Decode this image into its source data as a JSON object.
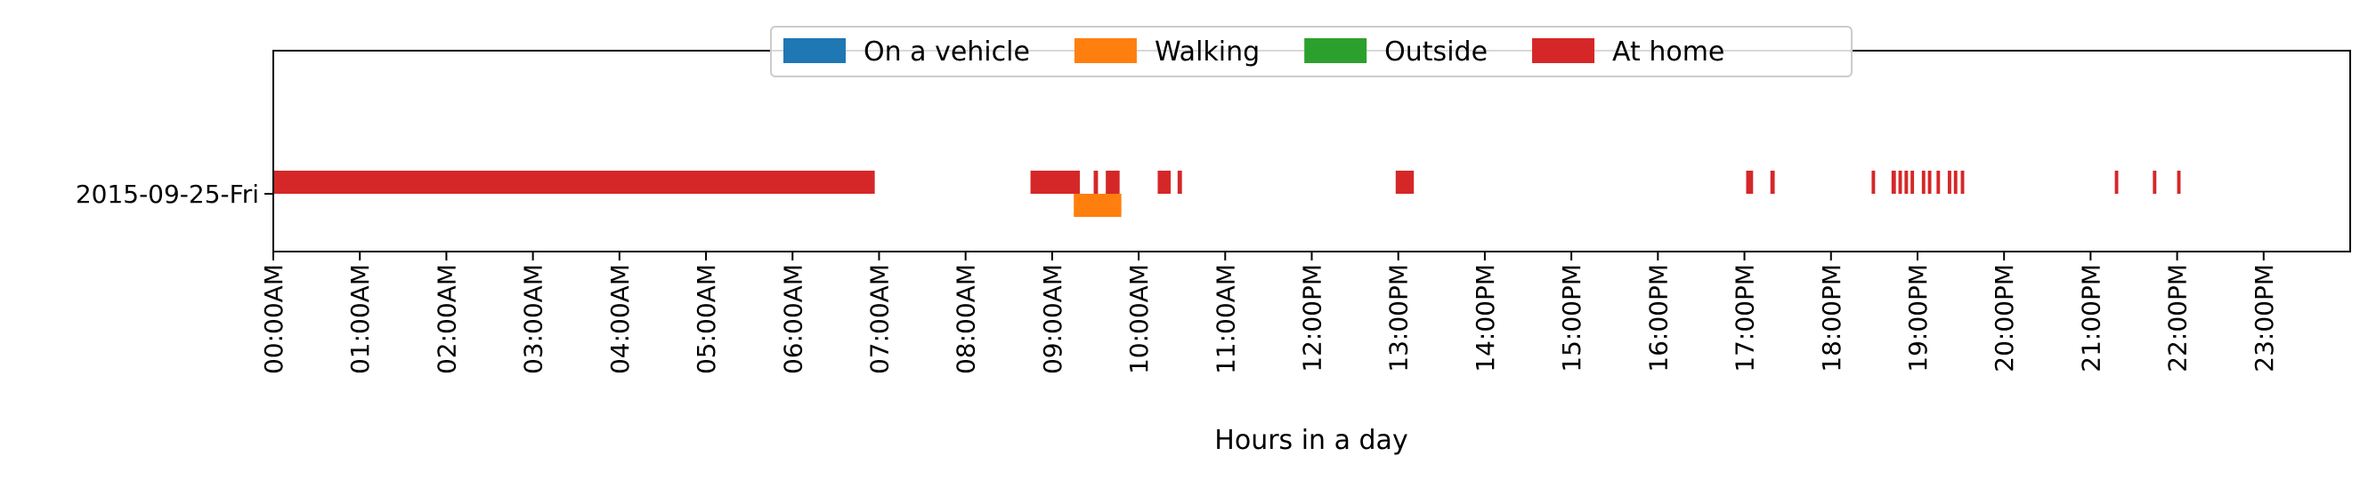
{
  "chart_data": {
    "type": "timeline",
    "xlabel": "Hours in a day",
    "xlim": [
      0,
      24
    ],
    "xticks": [
      {
        "value": 0,
        "label": "00:00AM"
      },
      {
        "value": 1,
        "label": "01:00AM"
      },
      {
        "value": 2,
        "label": "02:00AM"
      },
      {
        "value": 3,
        "label": "03:00AM"
      },
      {
        "value": 4,
        "label": "04:00AM"
      },
      {
        "value": 5,
        "label": "05:00AM"
      },
      {
        "value": 6,
        "label": "06:00AM"
      },
      {
        "value": 7,
        "label": "07:00AM"
      },
      {
        "value": 8,
        "label": "08:00AM"
      },
      {
        "value": 9,
        "label": "09:00AM"
      },
      {
        "value": 10,
        "label": "10:00AM"
      },
      {
        "value": 11,
        "label": "11:00AM"
      },
      {
        "value": 12,
        "label": "12:00PM"
      },
      {
        "value": 13,
        "label": "13:00PM"
      },
      {
        "value": 14,
        "label": "14:00PM"
      },
      {
        "value": 15,
        "label": "15:00PM"
      },
      {
        "value": 16,
        "label": "16:00PM"
      },
      {
        "value": 17,
        "label": "17:00PM"
      },
      {
        "value": 18,
        "label": "18:00PM"
      },
      {
        "value": 19,
        "label": "19:00PM"
      },
      {
        "value": 20,
        "label": "20:00PM"
      },
      {
        "value": 21,
        "label": "21:00PM"
      },
      {
        "value": 22,
        "label": "22:00PM"
      },
      {
        "value": 23,
        "label": "23:00PM"
      }
    ],
    "rows": [
      "2015-09-25-Fri"
    ],
    "legend_position": "top-center",
    "grid": false,
    "series": [
      {
        "name": "On a vehicle",
        "color": "#1f77b4",
        "intervals": []
      },
      {
        "name": "Walking",
        "color": "#ff7f0e",
        "intervals": [
          [
            9.25,
            9.8
          ]
        ]
      },
      {
        "name": "Outside",
        "color": "#2ca02c",
        "intervals": []
      },
      {
        "name": "At home",
        "color": "#d62728",
        "intervals": [
          [
            0.0,
            6.95
          ],
          [
            8.75,
            9.32
          ],
          [
            9.48,
            9.53
          ],
          [
            9.62,
            9.78
          ],
          [
            10.22,
            10.37
          ],
          [
            10.45,
            10.5
          ],
          [
            12.97,
            13.18
          ],
          [
            17.02,
            17.1
          ],
          [
            17.3,
            17.35
          ],
          [
            18.47,
            18.51
          ],
          [
            18.7,
            18.75
          ],
          [
            18.78,
            18.82
          ],
          [
            18.85,
            18.89
          ],
          [
            18.92,
            18.96
          ],
          [
            19.05,
            19.09
          ],
          [
            19.12,
            19.16
          ],
          [
            19.22,
            19.26
          ],
          [
            19.35,
            19.39
          ],
          [
            19.42,
            19.46
          ],
          [
            19.5,
            19.54
          ],
          [
            21.28,
            21.32
          ],
          [
            21.72,
            21.76
          ],
          [
            22.0,
            22.04
          ]
        ]
      }
    ]
  }
}
